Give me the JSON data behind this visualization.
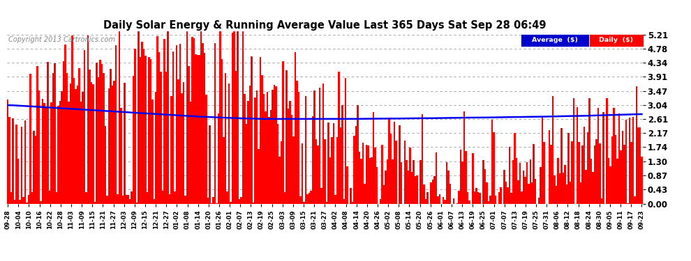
{
  "title": "Daily Solar Energy & Running Average Value Last 365 Days Sat Sep 28 06:49",
  "copyright": "Copyright 2013 Cartronics.com",
  "ylabel_right": [
    "0.00",
    "0.43",
    "0.87",
    "1.30",
    "1.74",
    "2.17",
    "2.61",
    "3.04",
    "3.47",
    "3.91",
    "4.34",
    "4.78",
    "5.21"
  ],
  "ymax": 5.21,
  "ymin": 0.0,
  "bar_color": "#FF0000",
  "avg_line_color": "#0000EE",
  "background_color": "#FFFFFF",
  "legend_avg_bg": "#0000CC",
  "legend_daily_bg": "#FF0000",
  "legend_avg_text": "Average  ($)",
  "legend_daily_text": "Daily  ($)",
  "x_tick_labels": [
    "09-28",
    "10-04",
    "10-10",
    "10-16",
    "10-22",
    "10-28",
    "11-03",
    "11-09",
    "11-15",
    "11-21",
    "11-27",
    "12-03",
    "12-09",
    "12-15",
    "12-21",
    "12-27",
    "01-02",
    "01-08",
    "01-14",
    "01-20",
    "01-26",
    "02-01",
    "02-07",
    "02-13",
    "02-19",
    "02-25",
    "03-03",
    "03-09",
    "03-15",
    "03-21",
    "03-27",
    "04-02",
    "04-08",
    "04-14",
    "04-20",
    "04-26",
    "05-02",
    "05-08",
    "05-14",
    "05-20",
    "05-26",
    "06-01",
    "06-07",
    "06-13",
    "06-19",
    "06-25",
    "07-01",
    "07-07",
    "07-13",
    "07-19",
    "07-25",
    "07-31",
    "08-06",
    "08-12",
    "08-18",
    "08-24",
    "08-30",
    "09-05",
    "09-11",
    "09-17",
    "09-23"
  ],
  "n_days": 365,
  "seed": 42,
  "avg_points": [
    3.04,
    3.02,
    3.0,
    2.98,
    2.96,
    2.94,
    2.92,
    2.9,
    2.88,
    2.86,
    2.84,
    2.82,
    2.8,
    2.78,
    2.76,
    2.74,
    2.72,
    2.7,
    2.68,
    2.67,
    2.65,
    2.64,
    2.63,
    2.62,
    2.61,
    2.61,
    2.61,
    2.61,
    2.61,
    2.61,
    2.61,
    2.61,
    2.61,
    2.61,
    2.62,
    2.62,
    2.62,
    2.62,
    2.63,
    2.63,
    2.63,
    2.64,
    2.64,
    2.65,
    2.65,
    2.65,
    2.66,
    2.66,
    2.67,
    2.67,
    2.68,
    2.68,
    2.69,
    2.7,
    2.7,
    2.71,
    2.72,
    2.73,
    2.74,
    2.75,
    2.76
  ]
}
